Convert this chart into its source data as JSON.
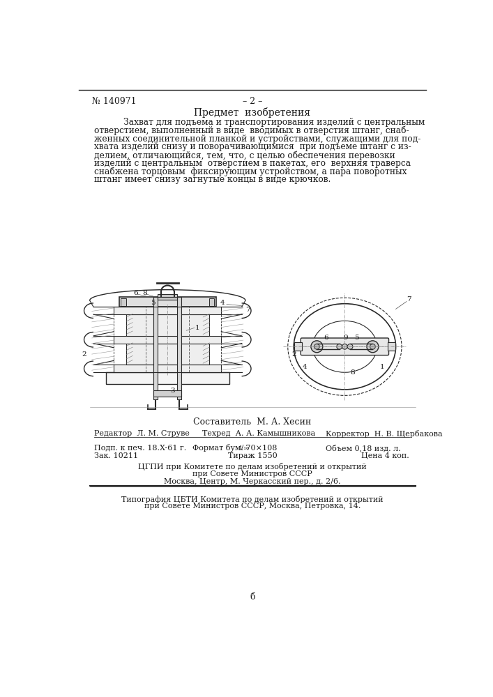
{
  "page_number": "№ 140971",
  "page_num_center": "– 2 –",
  "section_title": "Предмет  изобретения",
  "main_lines": [
    "Захват для подъема и транспортирования изделий с центральным",
    "отверстием, выполненный в виде  вводимых в отверстия штанг, снаб-",
    "женных соединительной планкой и устройствами, служащими для под-",
    "хвата изделий снизу и поворачивающимися  при подъеме штанг с из-",
    "делием, отличающийся, тем, что, с целью обеспечения перевозки",
    "изделий с центральным  отверстием в пакетах, его  верхняя траверса",
    "снабжена торцовым  фиксирующим устройством, а пара поворотных",
    "штанг имеет снизу загнутые концы в виде крючков."
  ],
  "composer_label": "Составитель  М. А. Хесин",
  "editor_label": "Редактор  Л. М. Струве",
  "tech_editor_label": "Техред  А. А. Камышникова",
  "corrector_label": "Корректор  Н. В. Щербакова",
  "submit_label": "Подп. к печ. 18.X-61 г.",
  "format_label": "Формат бум. 70×108",
  "volume_label": "Объем 0,18 изд. л.",
  "order_label": "Зак. 10211",
  "edition_label": "Тираж 1550",
  "price_label": "Цена 4 коп.",
  "org_line1": "ЦГПИ при Комитете по делам изобретений и открытий",
  "org_line2": "при Совете Министров СССР",
  "org_line3": "Москва, Центр, М. Черкасский пер., д. 2/6.",
  "print_line1": "Типография ЦБТИ Комитета по делам изобретений и открытий",
  "print_line2": "при Совете Министров СССР, Москва, Петровка, 14.",
  "page_b": "б",
  "bg_color": "#ffffff",
  "text_color": "#1a1a1a",
  "line_color": "#2a2a2a"
}
